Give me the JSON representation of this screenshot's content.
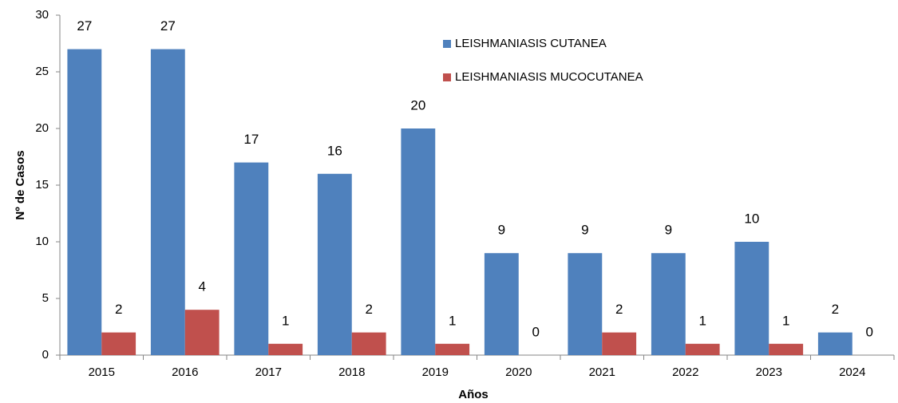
{
  "chart_data": {
    "type": "bar",
    "categories": [
      "2015",
      "2016",
      "2017",
      "2018",
      "2019",
      "2020",
      "2021",
      "2022",
      "2023",
      "2024"
    ],
    "series": [
      {
        "name": "LEISHMANIASIS CUTANEA",
        "color": "#4f81bd",
        "values": [
          27,
          27,
          17,
          16,
          20,
          9,
          9,
          9,
          10,
          2
        ]
      },
      {
        "name": "LEISHMANIASIS MUCOCUTANEA",
        "color": "#c0504d",
        "values": [
          2,
          4,
          1,
          2,
          1,
          0,
          2,
          1,
          1,
          0
        ]
      }
    ],
    "x_label": "Años",
    "y_label": "Nº de Casos",
    "ylim": [
      0,
      30
    ],
    "yticks": [
      0,
      5,
      10,
      15,
      20,
      25,
      30
    ],
    "grid": false,
    "legend": "top-center"
  }
}
